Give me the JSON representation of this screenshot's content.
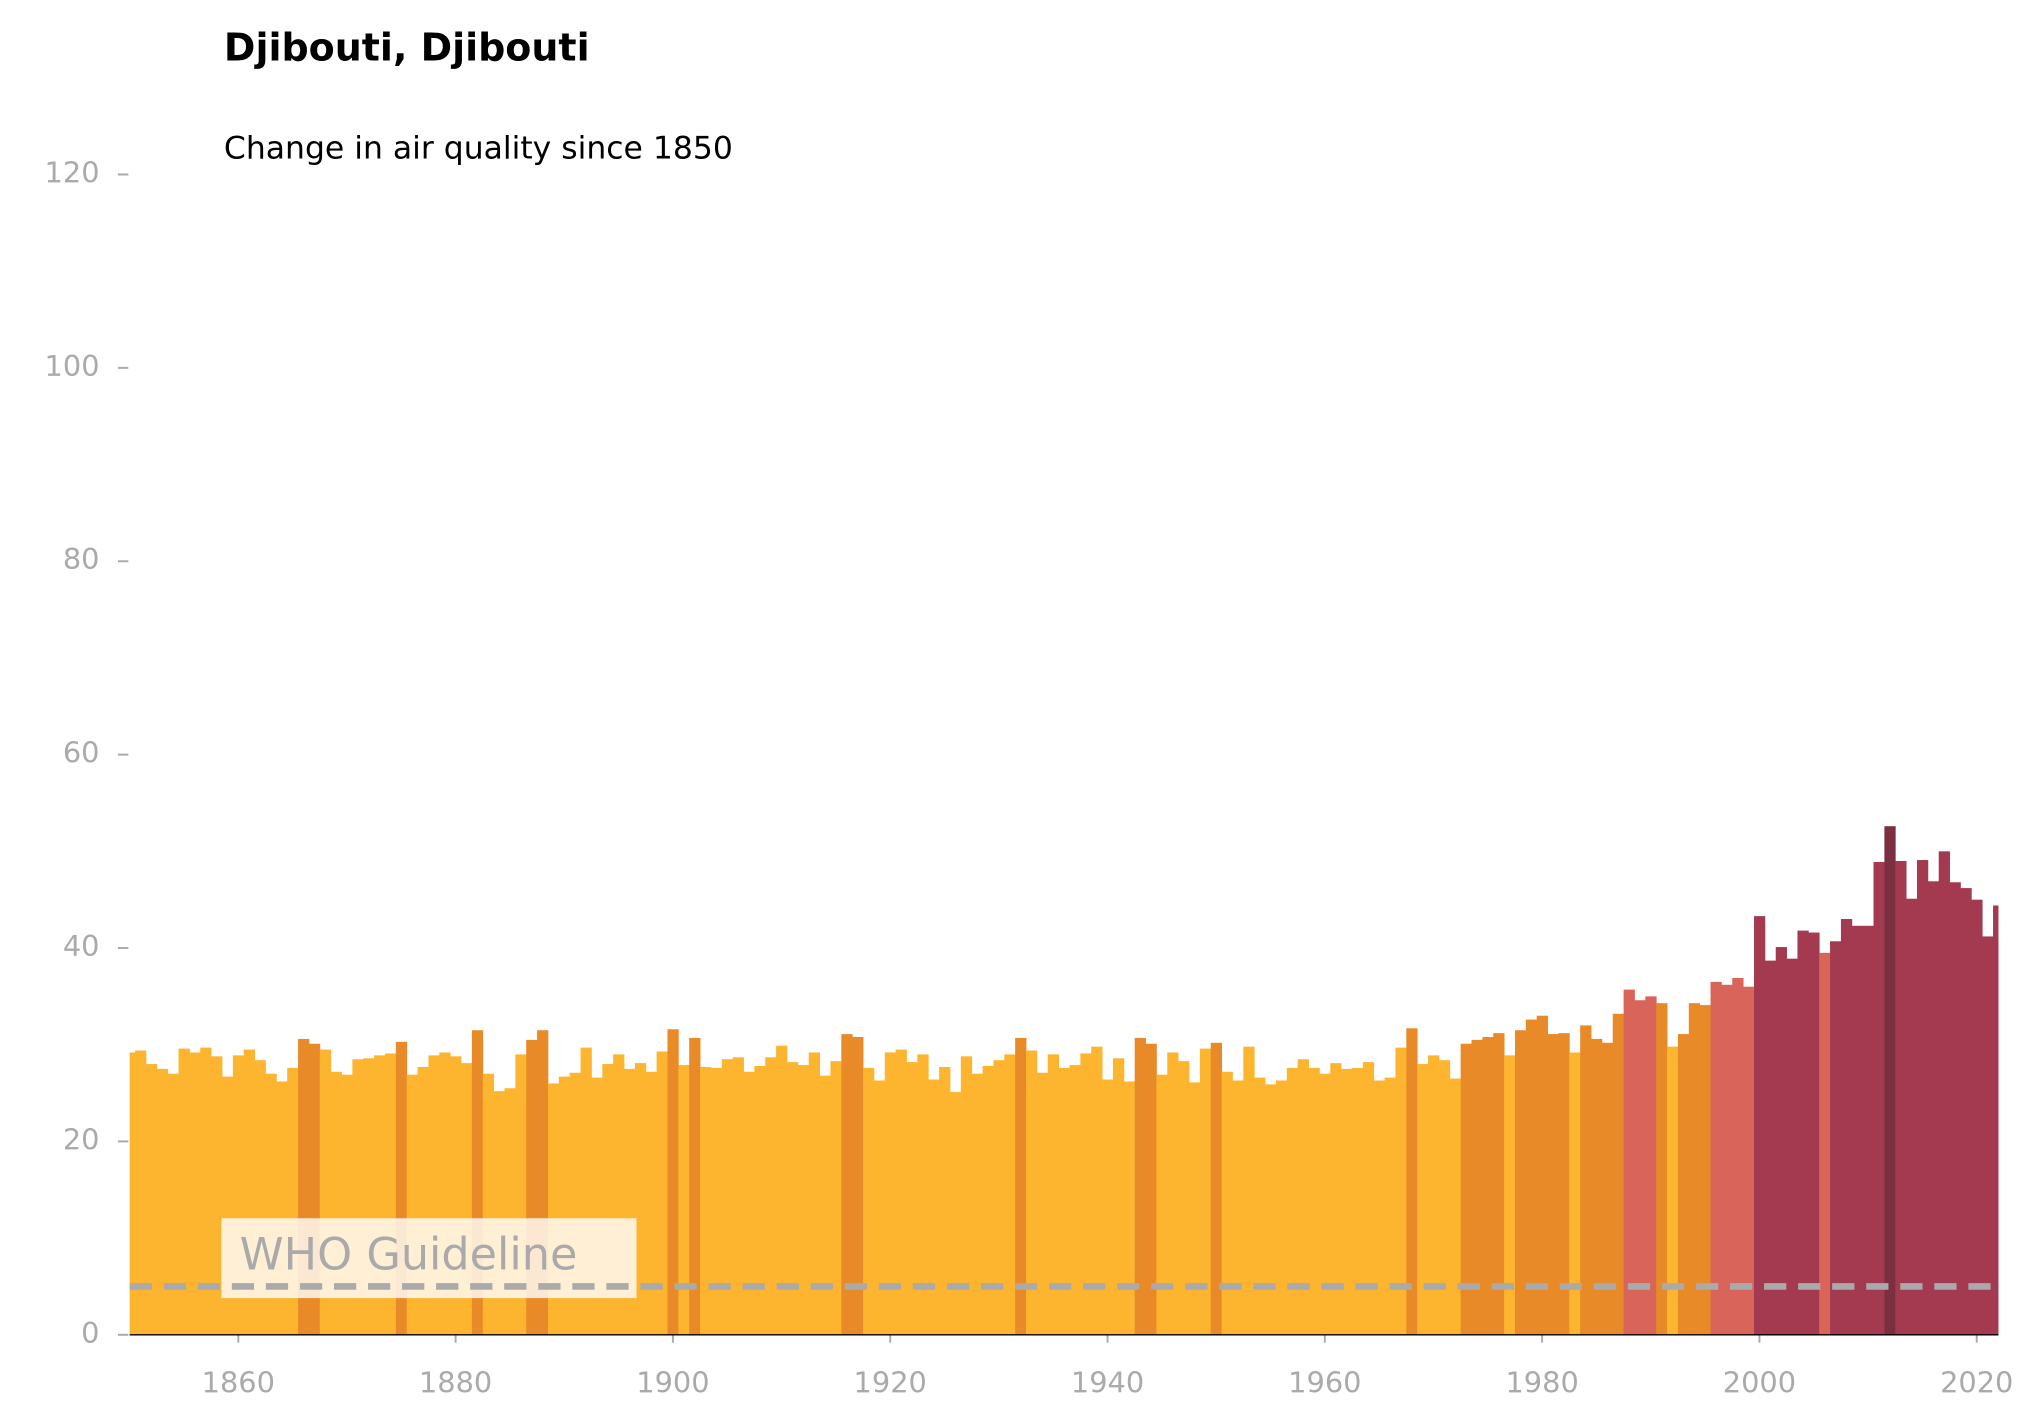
{
  "chart_data": {
    "type": "bar",
    "title": "Djibouti, Djibouti",
    "subtitle": "Change in air quality since 1850",
    "x": [
      1850,
      1851,
      1852,
      1853,
      1854,
      1855,
      1856,
      1857,
      1858,
      1859,
      1860,
      1861,
      1862,
      1863,
      1864,
      1865,
      1866,
      1867,
      1868,
      1869,
      1870,
      1871,
      1872,
      1873,
      1874,
      1875,
      1876,
      1877,
      1878,
      1879,
      1880,
      1881,
      1882,
      1883,
      1884,
      1885,
      1886,
      1887,
      1888,
      1889,
      1890,
      1891,
      1892,
      1893,
      1894,
      1895,
      1896,
      1897,
      1898,
      1899,
      1900,
      1901,
      1902,
      1903,
      1904,
      1905,
      1906,
      1907,
      1908,
      1909,
      1910,
      1911,
      1912,
      1913,
      1914,
      1915,
      1916,
      1917,
      1918,
      1919,
      1920,
      1921,
      1922,
      1923,
      1924,
      1925,
      1926,
      1927,
      1928,
      1929,
      1930,
      1931,
      1932,
      1933,
      1934,
      1935,
      1936,
      1937,
      1938,
      1939,
      1940,
      1941,
      1942,
      1943,
      1944,
      1945,
      1946,
      1947,
      1948,
      1949,
      1950,
      1951,
      1952,
      1953,
      1954,
      1955,
      1956,
      1957,
      1958,
      1959,
      1960,
      1961,
      1962,
      1963,
      1964,
      1965,
      1966,
      1967,
      1968,
      1969,
      1970,
      1971,
      1972,
      1973,
      1974,
      1975,
      1976,
      1977,
      1978,
      1979,
      1980,
      1981,
      1982,
      1983,
      1984,
      1985,
      1986,
      1987,
      1988,
      1989,
      1990,
      1991,
      1992,
      1993,
      1994,
      1995,
      1996,
      1997,
      1998,
      1999,
      2000,
      2001,
      2002,
      2003,
      2004,
      2005,
      2006,
      2007,
      2008,
      2009,
      2010,
      2011,
      2012,
      2013,
      2014,
      2015,
      2016,
      2017,
      2018,
      2019,
      2020,
      2021,
      2022
    ],
    "values": [
      29.2,
      29.4,
      28.0,
      27.5,
      27.0,
      29.6,
      29.2,
      29.7,
      28.8,
      26.7,
      28.9,
      29.5,
      28.4,
      27.0,
      26.2,
      27.6,
      30.6,
      30.1,
      29.5,
      27.2,
      26.9,
      28.5,
      28.6,
      28.9,
      29.1,
      30.3,
      26.9,
      27.7,
      28.9,
      29.2,
      28.8,
      28.1,
      31.5,
      27.0,
      25.2,
      25.5,
      29.0,
      30.5,
      31.5,
      26.0,
      26.7,
      27.1,
      29.7,
      26.6,
      28.0,
      29.0,
      27.5,
      28.1,
      27.2,
      29.3,
      31.6,
      27.9,
      30.7,
      27.7,
      27.6,
      28.5,
      28.7,
      27.2,
      27.8,
      28.7,
      29.9,
      28.2,
      27.9,
      29.2,
      26.8,
      28.3,
      31.1,
      30.8,
      27.6,
      26.3,
      29.2,
      29.5,
      28.2,
      29.0,
      26.4,
      27.7,
      25.1,
      28.8,
      27.0,
      27.8,
      28.4,
      29.0,
      30.7,
      29.4,
      27.1,
      29.0,
      27.6,
      27.9,
      29.1,
      29.8,
      26.4,
      28.6,
      26.2,
      30.7,
      30.1,
      26.9,
      29.2,
      28.3,
      26.1,
      29.6,
      30.2,
      27.2,
      26.3,
      29.8,
      26.6,
      25.9,
      26.3,
      27.6,
      28.5,
      27.6,
      27.0,
      28.1,
      27.5,
      27.6,
      28.2,
      26.3,
      26.6,
      29.7,
      31.7,
      28.0,
      28.9,
      28.4,
      26.5,
      30.1,
      30.5,
      30.8,
      31.2,
      28.9,
      31.5,
      32.6,
      33.0,
      31.1,
      31.2,
      29.2,
      32.0,
      30.6,
      30.2,
      33.2,
      35.7,
      34.6,
      35.0,
      34.3,
      29.8,
      31.1,
      34.3,
      34.1,
      36.5,
      36.2,
      36.9,
      36.0,
      43.3,
      38.7,
      40.1,
      38.9,
      41.8,
      41.6,
      39.5,
      40.7,
      43.0,
      42.3,
      42.3,
      48.9,
      52.6,
      49.0,
      45.1,
      49.1,
      46.9,
      50.0,
      46.8,
      46.2,
      45.0,
      41.2,
      44.4
    ],
    "colors": [
      "#fdb42e",
      "#fdb42e",
      "#fdb42e",
      "#fdb42e",
      "#fdb42e",
      "#fdb42e",
      "#fdb42e",
      "#fdb42e",
      "#fdb42e",
      "#fdb42e",
      "#fdb42e",
      "#fdb42e",
      "#fdb42e",
      "#fdb42e",
      "#fdb42e",
      "#fdb42e",
      "#e88a27",
      "#e88a27",
      "#fdb42e",
      "#fdb42e",
      "#fdb42e",
      "#fdb42e",
      "#fdb42e",
      "#fdb42e",
      "#fdb42e",
      "#e88a27",
      "#fdb42e",
      "#fdb42e",
      "#fdb42e",
      "#fdb42e",
      "#fdb42e",
      "#fdb42e",
      "#e88a27",
      "#fdb42e",
      "#fdb42e",
      "#fdb42e",
      "#fdb42e",
      "#e88a27",
      "#e88a27",
      "#fdb42e",
      "#fdb42e",
      "#fdb42e",
      "#fdb42e",
      "#fdb42e",
      "#fdb42e",
      "#fdb42e",
      "#fdb42e",
      "#fdb42e",
      "#fdb42e",
      "#fdb42e",
      "#e88a27",
      "#fdb42e",
      "#e88a27",
      "#fdb42e",
      "#fdb42e",
      "#fdb42e",
      "#fdb42e",
      "#fdb42e",
      "#fdb42e",
      "#fdb42e",
      "#fdb42e",
      "#fdb42e",
      "#fdb42e",
      "#fdb42e",
      "#fdb42e",
      "#fdb42e",
      "#e88a27",
      "#e88a27",
      "#fdb42e",
      "#fdb42e",
      "#fdb42e",
      "#fdb42e",
      "#fdb42e",
      "#fdb42e",
      "#fdb42e",
      "#fdb42e",
      "#fdb42e",
      "#fdb42e",
      "#fdb42e",
      "#fdb42e",
      "#fdb42e",
      "#fdb42e",
      "#e88a27",
      "#fdb42e",
      "#fdb42e",
      "#fdb42e",
      "#fdb42e",
      "#fdb42e",
      "#fdb42e",
      "#fdb42e",
      "#fdb42e",
      "#fdb42e",
      "#fdb42e",
      "#e88a27",
      "#e88a27",
      "#fdb42e",
      "#fdb42e",
      "#fdb42e",
      "#fdb42e",
      "#fdb42e",
      "#e88a27",
      "#fdb42e",
      "#fdb42e",
      "#fdb42e",
      "#fdb42e",
      "#fdb42e",
      "#fdb42e",
      "#fdb42e",
      "#fdb42e",
      "#fdb42e",
      "#fdb42e",
      "#fdb42e",
      "#fdb42e",
      "#fdb42e",
      "#fdb42e",
      "#fdb42e",
      "#fdb42e",
      "#fdb42e",
      "#e88a27",
      "#fdb42e",
      "#fdb42e",
      "#fdb42e",
      "#fdb42e",
      "#e88a27",
      "#e88a27",
      "#e88a27",
      "#e88a27",
      "#fdb42e",
      "#e88a27",
      "#e88a27",
      "#e88a27",
      "#e88a27",
      "#e88a27",
      "#fdb42e",
      "#e88a27",
      "#e88a27",
      "#e88a27",
      "#e88a27",
      "#d9645a",
      "#d9645a",
      "#d9645a",
      "#e88a27",
      "#fdb42e",
      "#e88a27",
      "#e88a27",
      "#e88a27",
      "#d9645a",
      "#d9645a",
      "#d9645a",
      "#d9645a",
      "#a33a50",
      "#a33a50",
      "#a33a50",
      "#a33a50",
      "#a33a50",
      "#a33a50",
      "#d9645a",
      "#a33a50",
      "#a33a50",
      "#a33a50",
      "#a33a50",
      "#a33a50",
      "#7a3040",
      "#a33a50",
      "#a33a50",
      "#a33a50",
      "#a33a50",
      "#a33a50",
      "#a33a50",
      "#a33a50",
      "#a33a50",
      "#a33a50",
      "#a33a50"
    ],
    "xlim": [
      1850,
      2022
    ],
    "xticks": [
      1860,
      1880,
      1900,
      1920,
      1940,
      1960,
      1980,
      2000,
      2020
    ],
    "ylim": [
      0,
      120
    ],
    "yticks": [
      0,
      20,
      40,
      60,
      80,
      100,
      120
    ],
    "guideline": {
      "label": "WHO Guideline",
      "value": 5,
      "color": "#aaaaaa"
    }
  }
}
